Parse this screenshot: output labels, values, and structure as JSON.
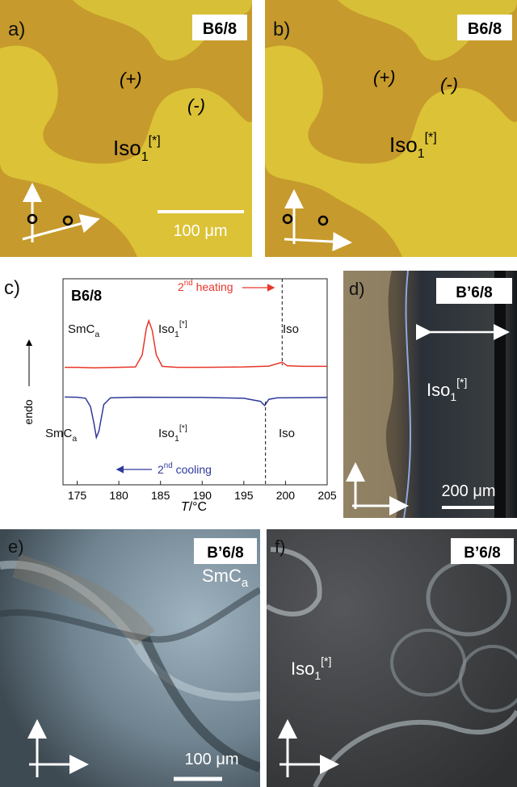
{
  "panels": [
    {
      "letter": "a)",
      "sample": "B6/8",
      "signs": [
        "(+)",
        "(-)"
      ],
      "phase": {
        "main": "Iso",
        "sub": "1",
        "sup": "[*]"
      },
      "scale": "100 μm"
    },
    {
      "letter": "b)",
      "sample": "B6/8",
      "signs": [
        "(+)",
        "(-)"
      ],
      "phase": {
        "main": "Iso",
        "sub": "1",
        "sup": "[*]"
      }
    },
    {
      "letter": "d)",
      "sample": "B’6/8",
      "phase": {
        "main": "Iso",
        "sub": "1",
        "sup": "[*]"
      },
      "scale": "200 μm"
    },
    {
      "letter": "e)",
      "sample": "B’6/8",
      "phase": {
        "main": "SmC",
        "sub": "a"
      },
      "scale": "100 μm"
    },
    {
      "letter": "f)",
      "sample": "B’6/8",
      "phase": {
        "main": "Iso",
        "sub": "1",
        "sup": "[*]"
      }
    }
  ],
  "chart_data": {
    "type": "line",
    "letter": "c)",
    "title": "B6/8",
    "x_label": {
      "italic": "T",
      "rest": "/°C"
    },
    "y_label": "endo",
    "xlim": [
      173.3,
      205
    ],
    "xticks": [
      175,
      180,
      185,
      190,
      195,
      200,
      205
    ],
    "ylim": [
      0,
      10
    ],
    "series": [
      {
        "color": "#e8362a",
        "x": [
          173.5,
          175,
          177,
          180,
          182,
          182.8,
          183.3,
          183.6,
          184,
          184.5,
          185.2,
          187,
          190,
          195,
          198,
          199.2,
          199.6,
          200.2,
          202,
          205
        ],
        "values": [
          5.7,
          5.7,
          5.68,
          5.7,
          5.72,
          6.3,
          7.6,
          7.96,
          7.5,
          6.3,
          5.75,
          5.7,
          5.7,
          5.72,
          5.76,
          5.9,
          5.95,
          5.78,
          5.75,
          5.75
        ]
      },
      {
        "color": "#2e3a9a",
        "x": [
          173.5,
          175,
          176,
          176.6,
          177,
          177.3,
          177.6,
          178.2,
          179,
          182,
          190,
          195,
          197,
          197.5,
          198,
          199,
          205
        ],
        "values": [
          4.26,
          4.25,
          4.2,
          3.8,
          3.0,
          2.3,
          2.6,
          3.9,
          4.22,
          4.25,
          4.24,
          4.2,
          4.05,
          3.85,
          4.15,
          4.22,
          4.24
        ]
      }
    ],
    "markers": [
      199.6,
      197.6
    ],
    "phases": [
      {
        "main": "SmC",
        "sub": "a"
      },
      {
        "main": "Iso",
        "sub": "1",
        "sup": "[*]"
      },
      {
        "main": "Iso"
      },
      {
        "main": "SmC",
        "sub": "a"
      },
      {
        "main": "Iso",
        "sub": "1",
        "sup": "[*]"
      },
      {
        "main": "Iso"
      }
    ],
    "annotations": [
      {
        "main": "2",
        "sup": "nd",
        "rest": " heating"
      },
      {
        "main": "2",
        "sup": "nd",
        "rest": " cooling"
      }
    ]
  }
}
